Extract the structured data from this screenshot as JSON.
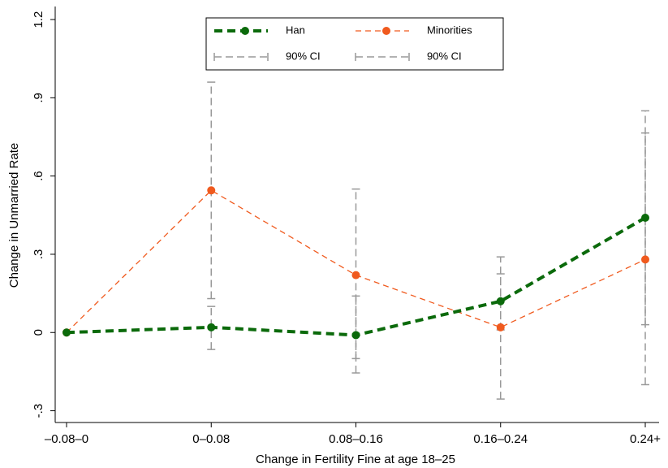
{
  "chart_data": {
    "type": "line",
    "xlabel": "Change in Fertility Fine at age 18–25",
    "ylabel": "Change in Unmarried Rate",
    "categories": [
      "–0.08–0",
      "0–0.08",
      "0.08–0.16",
      "0.16–0.24",
      "0.24+"
    ],
    "ylim": [
      -0.345,
      1.25
    ],
    "yticks": [
      {
        "value": -0.3,
        "label": "-.3"
      },
      0,
      {
        "value": 0.3,
        "label": ".3"
      },
      {
        "value": 0.6,
        "label": ".6"
      },
      {
        "value": 0.9,
        "label": ".9"
      },
      {
        "value": 1.2,
        "label": "1.2"
      }
    ],
    "series": [
      {
        "name": "Han",
        "color": "#0b6a0b",
        "values": [
          0,
          0.02,
          -0.01,
          0.12,
          0.44
        ],
        "ci": {
          "name": "90% CI",
          "color": "#999999",
          "lower": [
            null,
            -0.065,
            -0.155,
            0.01,
            0.03
          ],
          "upper": [
            null,
            0.1,
            0.14,
            0.225,
            0.765
          ]
        }
      },
      {
        "name": "Minorities",
        "color": "#f05a1e",
        "values": [
          0,
          0.545,
          0.22,
          0.02,
          0.28
        ],
        "ci": {
          "name": "90% CI",
          "color": "#999999",
          "lower": [
            null,
            0.13,
            -0.1,
            -0.255,
            -0.2
          ],
          "upper": [
            null,
            0.96,
            0.55,
            0.29,
            0.85
          ]
        }
      }
    ]
  }
}
